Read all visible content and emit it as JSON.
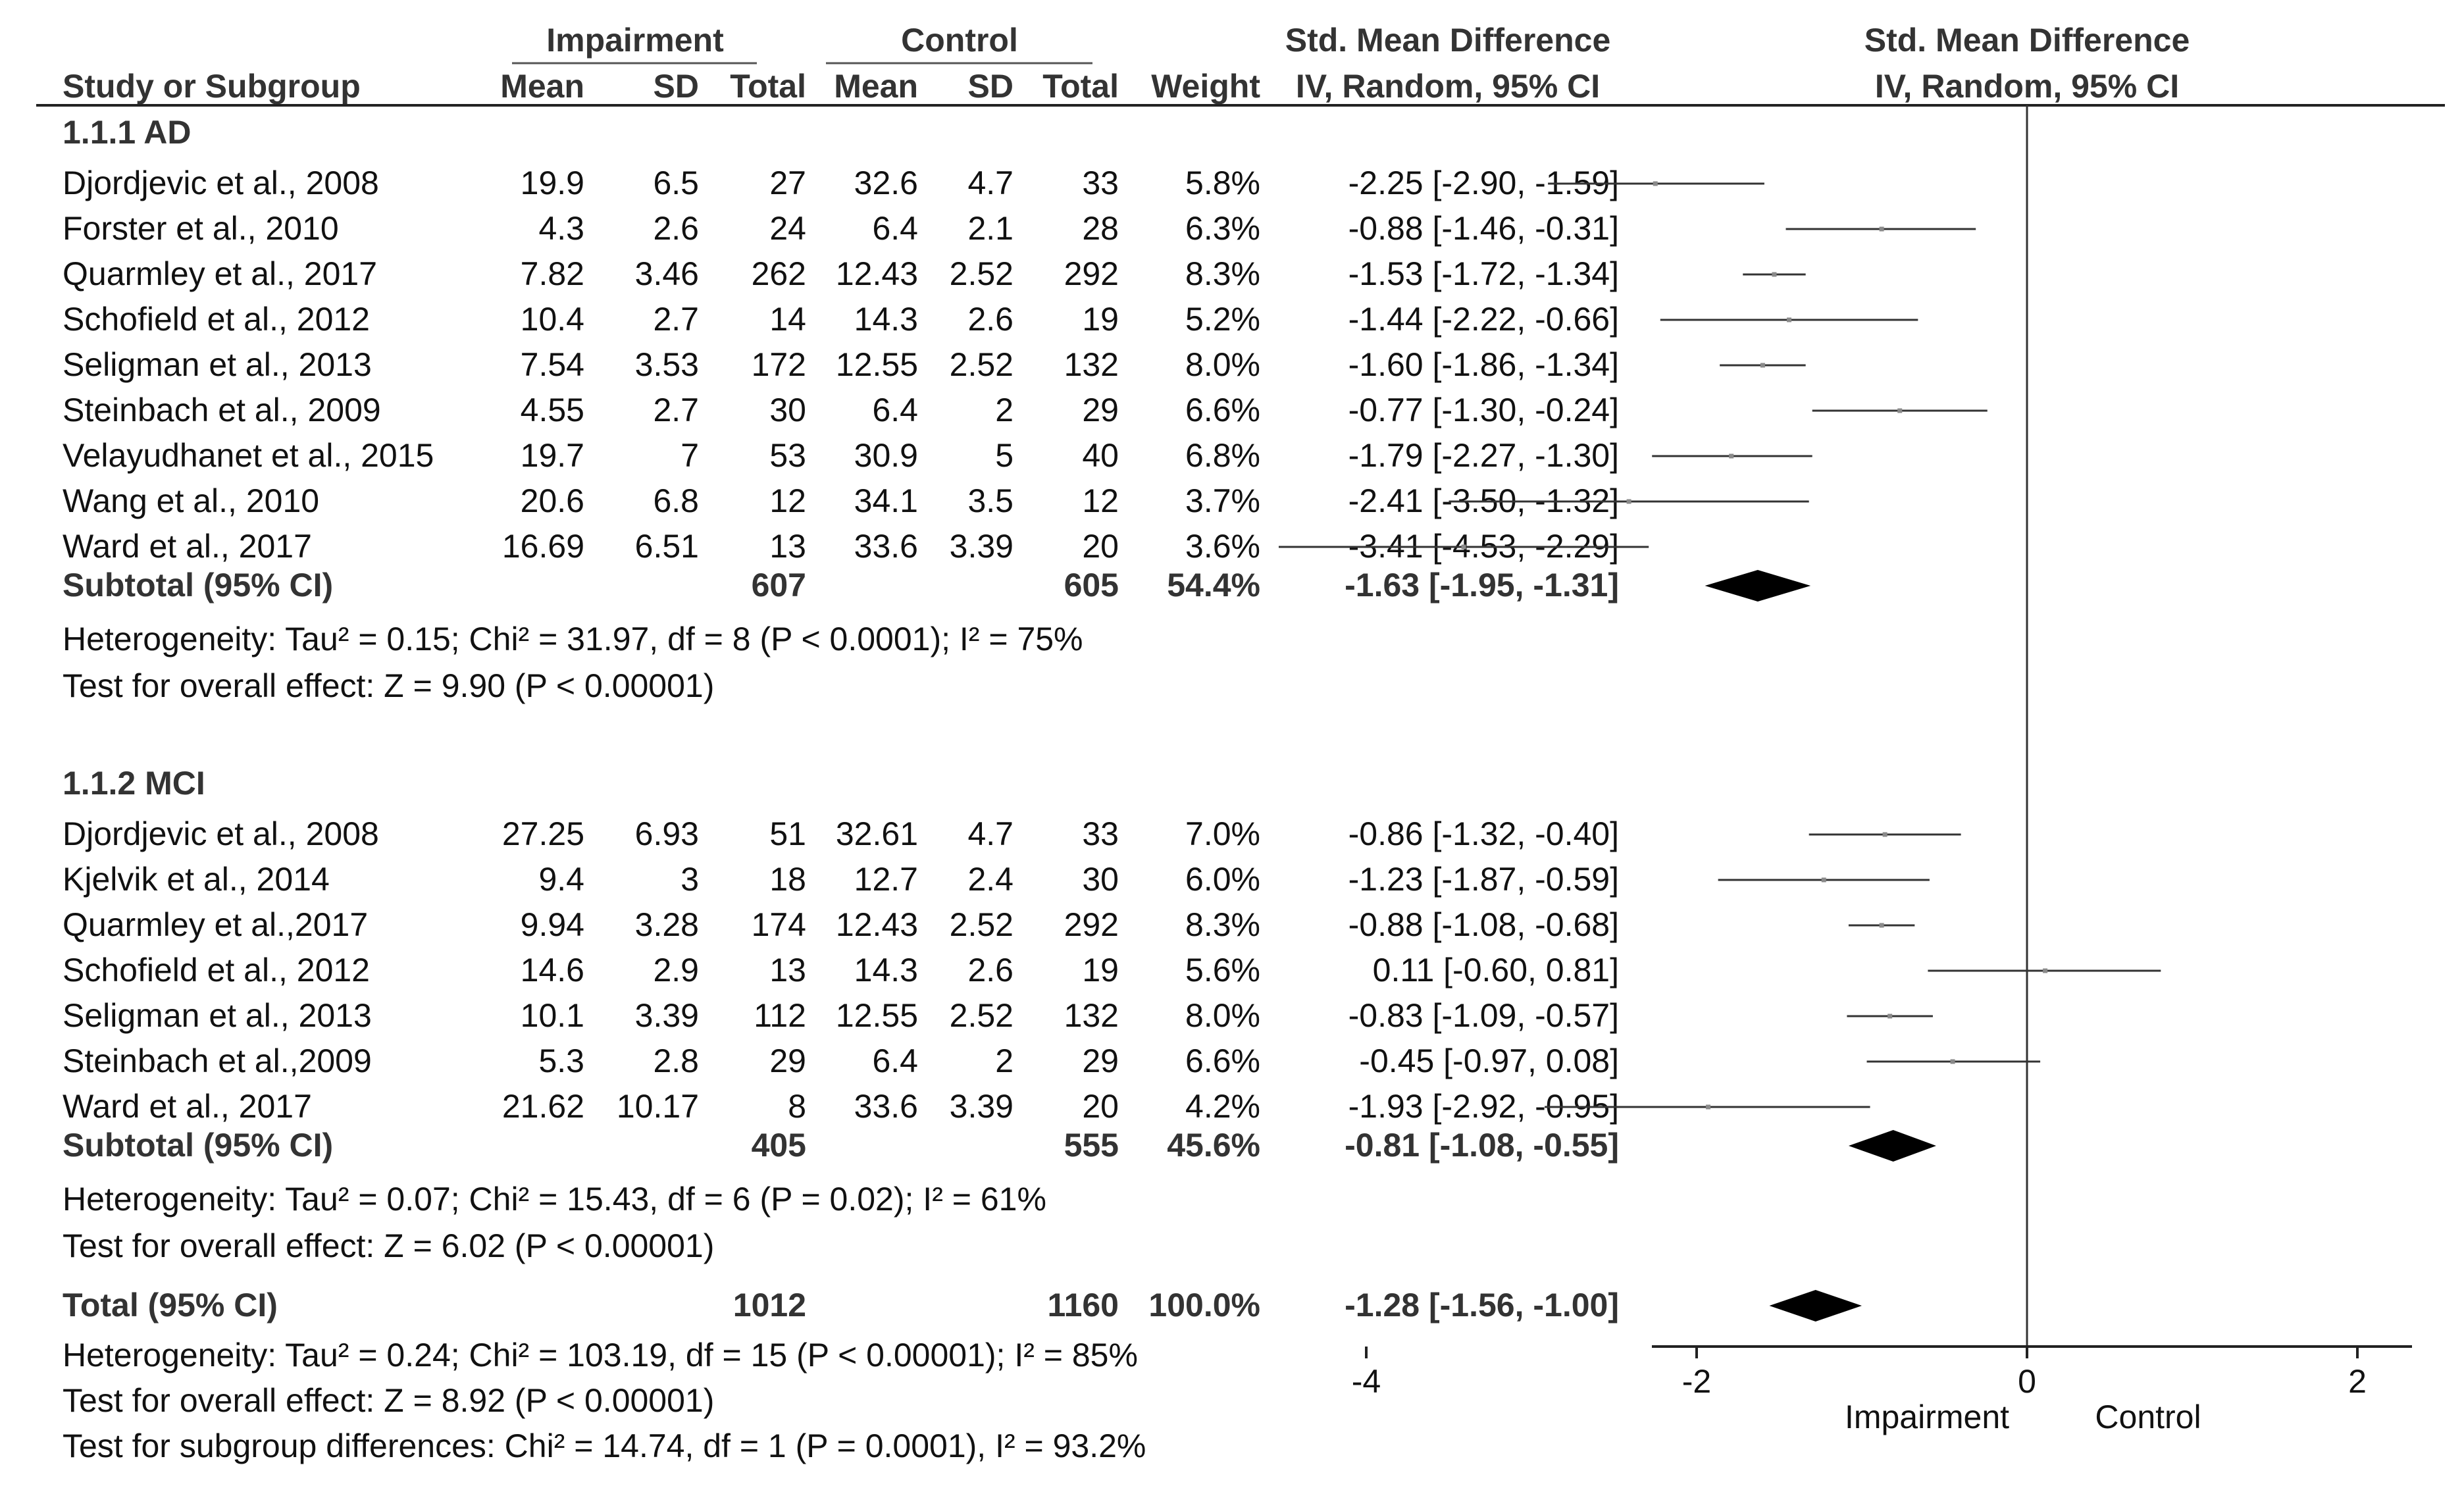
{
  "header": {
    "group1": "Impairment",
    "group2": "Control",
    "smd_title": "Std. Mean Difference",
    "smd_method": "IV, Random, 95% CI",
    "plot_title": "Std. Mean Difference",
    "plot_method": "IV, Random, 95% CI",
    "columns": [
      "Study or Subgroup",
      "Mean",
      "SD",
      "Total",
      "Mean",
      "SD",
      "Total",
      "Weight"
    ]
  },
  "chart_data": {
    "type": "forest",
    "xlim": [
      -4,
      4
    ],
    "xticks": [
      "-4",
      "-2",
      "0",
      "2",
      "4"
    ],
    "xlabel_left": "Impairment",
    "xlabel_right": "Control",
    "subgroups": [
      {
        "label": "1.1.1 AD",
        "studies": [
          {
            "name": "Djordjevic et al., 2008",
            "m1": "19.9",
            "sd1": "6.5",
            "n1": "27",
            "m2": "32.6",
            "sd2": "4.7",
            "n2": "33",
            "weight": "5.8%",
            "ci": "-2.25 [-2.90, -1.59]",
            "est": -2.25,
            "lo": -2.9,
            "hi": -1.59
          },
          {
            "name": "Forster et al., 2010",
            "m1": "4.3",
            "sd1": "2.6",
            "n1": "24",
            "m2": "6.4",
            "sd2": "2.1",
            "n2": "28",
            "weight": "6.3%",
            "ci": "-0.88 [-1.46, -0.31]",
            "est": -0.88,
            "lo": -1.46,
            "hi": -0.31
          },
          {
            "name": "Quarmley et al., 2017",
            "m1": "7.82",
            "sd1": "3.46",
            "n1": "262",
            "m2": "12.43",
            "sd2": "2.52",
            "n2": "292",
            "weight": "8.3%",
            "ci": "-1.53 [-1.72, -1.34]",
            "est": -1.53,
            "lo": -1.72,
            "hi": -1.34
          },
          {
            "name": "Schofield et al., 2012",
            "m1": "10.4",
            "sd1": "2.7",
            "n1": "14",
            "m2": "14.3",
            "sd2": "2.6",
            "n2": "19",
            "weight": "5.2%",
            "ci": "-1.44 [-2.22, -0.66]",
            "est": -1.44,
            "lo": -2.22,
            "hi": -0.66
          },
          {
            "name": "Seligman et al., 2013",
            "m1": "7.54",
            "sd1": "3.53",
            "n1": "172",
            "m2": "12.55",
            "sd2": "2.52",
            "n2": "132",
            "weight": "8.0%",
            "ci": "-1.60 [-1.86, -1.34]",
            "est": -1.6,
            "lo": -1.86,
            "hi": -1.34
          },
          {
            "name": "Steinbach et al., 2009",
            "m1": "4.55",
            "sd1": "2.7",
            "n1": "30",
            "m2": "6.4",
            "sd2": "2",
            "n2": "29",
            "weight": "6.6%",
            "ci": "-0.77 [-1.30, -0.24]",
            "est": -0.77,
            "lo": -1.3,
            "hi": -0.24
          },
          {
            "name": "Velayudhanet et al., 2015",
            "m1": "19.7",
            "sd1": "7",
            "n1": "53",
            "m2": "30.9",
            "sd2": "5",
            "n2": "40",
            "weight": "6.8%",
            "ci": "-1.79 [-2.27, -1.30]",
            "est": -1.79,
            "lo": -2.27,
            "hi": -1.3
          },
          {
            "name": "Wang et al., 2010",
            "m1": "20.6",
            "sd1": "6.8",
            "n1": "12",
            "m2": "34.1",
            "sd2": "3.5",
            "n2": "12",
            "weight": "3.7%",
            "ci": "-2.41 [-3.50, -1.32]",
            "est": -2.41,
            "lo": -3.5,
            "hi": -1.32
          },
          {
            "name": "Ward et al., 2017",
            "m1": "16.69",
            "sd1": "6.51",
            "n1": "13",
            "m2": "33.6",
            "sd2": "3.39",
            "n2": "20",
            "weight": "3.6%",
            "ci": "-3.41 [-4.53, -2.29]",
            "est": -3.41,
            "lo": -4.53,
            "hi": -2.29
          }
        ],
        "subtotal": {
          "label": "Subtotal (95% CI)",
          "n1": "607",
          "n2": "605",
          "weight": "54.4%",
          "ci": "-1.63 [-1.95, -1.31]",
          "est": -1.63,
          "lo": -1.95,
          "hi": -1.31
        },
        "heterogeneity": "Heterogeneity: Tau² = 0.15; Chi² = 31.97, df = 8 (P < 0.0001); I² = 75%",
        "overall": "Test for overall effect: Z = 9.90 (P < 0.00001)"
      },
      {
        "label": "1.1.2 MCI",
        "studies": [
          {
            "name": "Djordjevic et al., 2008",
            "m1": "27.25",
            "sd1": "6.93",
            "n1": "51",
            "m2": "32.61",
            "sd2": "4.7",
            "n2": "33",
            "weight": "7.0%",
            "ci": "-0.86 [-1.32, -0.40]",
            "est": -0.86,
            "lo": -1.32,
            "hi": -0.4
          },
          {
            "name": "Kjelvik et al., 2014",
            "m1": "9.4",
            "sd1": "3",
            "n1": "18",
            "m2": "12.7",
            "sd2": "2.4",
            "n2": "30",
            "weight": "6.0%",
            "ci": "-1.23 [-1.87, -0.59]",
            "est": -1.23,
            "lo": -1.87,
            "hi": -0.59
          },
          {
            "name": "Quarmley et al.,2017",
            "m1": "9.94",
            "sd1": "3.28",
            "n1": "174",
            "m2": "12.43",
            "sd2": "2.52",
            "n2": "292",
            "weight": "8.3%",
            "ci": "-0.88 [-1.08, -0.68]",
            "est": -0.88,
            "lo": -1.08,
            "hi": -0.68
          },
          {
            "name": "Schofield et al.,  2012",
            "m1": "14.6",
            "sd1": "2.9",
            "n1": "13",
            "m2": "14.3",
            "sd2": "2.6",
            "n2": "19",
            "weight": "5.6%",
            "ci": "0.11 [-0.60, 0.81]",
            "est": 0.11,
            "lo": -0.6,
            "hi": 0.81
          },
          {
            "name": "Seligman et al., 2013",
            "m1": "10.1",
            "sd1": "3.39",
            "n1": "112",
            "m2": "12.55",
            "sd2": "2.52",
            "n2": "132",
            "weight": "8.0%",
            "ci": "-0.83 [-1.09, -0.57]",
            "est": -0.83,
            "lo": -1.09,
            "hi": -0.57
          },
          {
            "name": "Steinbach et al.,2009",
            "m1": "5.3",
            "sd1": "2.8",
            "n1": "29",
            "m2": "6.4",
            "sd2": "2",
            "n2": "29",
            "weight": "6.6%",
            "ci": "-0.45 [-0.97, 0.08]",
            "est": -0.45,
            "lo": -0.97,
            "hi": 0.08
          },
          {
            "name": "Ward et al.,  2017",
            "m1": "21.62",
            "sd1": "10.17",
            "n1": "8",
            "m2": "33.6",
            "sd2": "3.39",
            "n2": "20",
            "weight": "4.2%",
            "ci": "-1.93 [-2.92, -0.95]",
            "est": -1.93,
            "lo": -2.92,
            "hi": -0.95
          }
        ],
        "subtotal": {
          "label": "Subtotal (95% CI)",
          "n1": "405",
          "n2": "555",
          "weight": "45.6%",
          "ci": "-0.81 [-1.08, -0.55]",
          "est": -0.81,
          "lo": -1.08,
          "hi": -0.55
        },
        "heterogeneity": "Heterogeneity: Tau² = 0.07; Chi² = 15.43, df = 6 (P = 0.02); I² = 61%",
        "overall": "Test for overall effect: Z = 6.02 (P < 0.00001)"
      }
    ],
    "total": {
      "label": "Total (95% CI)",
      "n1": "1012",
      "n2": "1160",
      "weight": "100.0%",
      "ci": "-1.28 [-1.56, -1.00]",
      "est": -1.28,
      "lo": -1.56,
      "hi": -1.0,
      "heterogeneity": "Heterogeneity: Tau² = 0.24; Chi² = 103.19, df = 15 (P < 0.00001); I² = 85%",
      "overall": "Test for overall effect: Z = 8.92 (P < 0.00001)",
      "subgroup_diff": "Test for subgroup differences: Chi² = 14.74, df = 1 (P = 0.0001), I² = 93.2%"
    }
  }
}
